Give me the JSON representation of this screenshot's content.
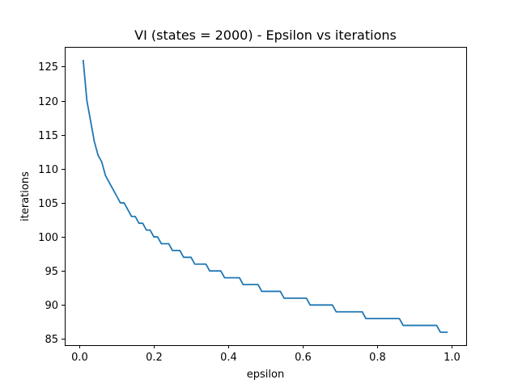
{
  "chart_data": {
    "type": "line",
    "title": "VI (states = 2000) - Epsilon vs iterations",
    "xlabel": "epsilon",
    "ylabel": "iterations",
    "xlim": [
      -0.0395,
      1.0395
    ],
    "ylim": [
      84.1,
      127.9
    ],
    "xticks": [
      0.0,
      0.2,
      0.4,
      0.6,
      0.8,
      1.0
    ],
    "xtick_labels": [
      "0.0",
      "0.2",
      "0.4",
      "0.6",
      "0.8",
      "1.0"
    ],
    "yticks": [
      85,
      90,
      95,
      100,
      105,
      110,
      115,
      120,
      125
    ],
    "ytick_labels": [
      "85",
      "90",
      "95",
      "100",
      "105",
      "110",
      "115",
      "120",
      "125"
    ],
    "grid": false,
    "legend": "none",
    "series": [
      {
        "color": "#1f77b4",
        "x": [
          0.01,
          0.02,
          0.03,
          0.04,
          0.05,
          0.06,
          0.07,
          0.08,
          0.09,
          0.1,
          0.11,
          0.12,
          0.13,
          0.14,
          0.15,
          0.16,
          0.17,
          0.18,
          0.19,
          0.2,
          0.21,
          0.22,
          0.23,
          0.24,
          0.25,
          0.26,
          0.27,
          0.28,
          0.29,
          0.3,
          0.31,
          0.32,
          0.33,
          0.34,
          0.35,
          0.36,
          0.37,
          0.38,
          0.39,
          0.4,
          0.41,
          0.42,
          0.43,
          0.44,
          0.45,
          0.46,
          0.47,
          0.48,
          0.49,
          0.5,
          0.51,
          0.52,
          0.53,
          0.54,
          0.55,
          0.56,
          0.57,
          0.58,
          0.59,
          0.6,
          0.61,
          0.62,
          0.63,
          0.64,
          0.65,
          0.66,
          0.67,
          0.68,
          0.69,
          0.7,
          0.71,
          0.72,
          0.73,
          0.74,
          0.75,
          0.76,
          0.77,
          0.78,
          0.79,
          0.8,
          0.81,
          0.82,
          0.83,
          0.84,
          0.85,
          0.86,
          0.87,
          0.88,
          0.89,
          0.9,
          0.91,
          0.92,
          0.93,
          0.94,
          0.95,
          0.96,
          0.97,
          0.98,
          0.99
        ],
        "y": [
          126,
          120,
          117,
          114,
          112,
          111,
          109,
          108,
          107,
          106,
          105,
          105,
          104,
          103,
          103,
          102,
          102,
          101,
          101,
          100,
          100,
          99,
          99,
          99,
          98,
          98,
          98,
          97,
          97,
          97,
          96,
          96,
          96,
          96,
          95,
          95,
          95,
          95,
          94,
          94,
          94,
          94,
          94,
          93,
          93,
          93,
          93,
          93,
          92,
          92,
          92,
          92,
          92,
          92,
          91,
          91,
          91,
          91,
          91,
          91,
          91,
          90,
          90,
          90,
          90,
          90,
          90,
          90,
          89,
          89,
          89,
          89,
          89,
          89,
          89,
          89,
          88,
          88,
          88,
          88,
          88,
          88,
          88,
          88,
          88,
          88,
          87,
          87,
          87,
          87,
          87,
          87,
          87,
          87,
          87,
          87,
          86,
          86,
          86
        ]
      }
    ]
  }
}
